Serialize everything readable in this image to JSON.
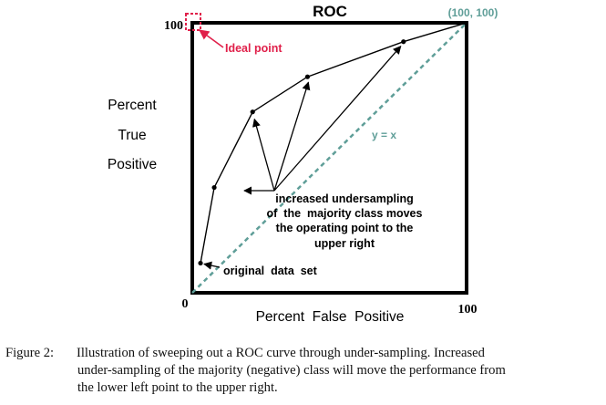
{
  "chart_data": {
    "type": "line",
    "title": "ROC",
    "xlabel": "Percent  False  Positive",
    "ylabel_lines": [
      "Percent",
      "True",
      "Positive"
    ],
    "xlim": [
      0,
      100
    ],
    "ylim": [
      0,
      100
    ],
    "x_tick_labels": {
      "origin": "0",
      "x_max": "100",
      "y_max": "100"
    },
    "series": [
      {
        "x": [
          3,
          8,
          22,
          42,
          77,
          100
        ],
        "y": [
          11,
          39,
          67,
          80,
          93,
          100
        ]
      }
    ],
    "diagonal": {
      "label": "y = x",
      "end_label": "(100, 100)",
      "color": "#5f9e98"
    },
    "ideal_point": {
      "x": 0,
      "y": 100,
      "label": "Ideal point",
      "color": "#e0204a"
    },
    "annotations": {
      "original": "original  data  set",
      "undersampling_lines": [
        "increased undersampling",
        "of  the  majority class moves",
        "the operating point to the",
        "upper right"
      ]
    }
  },
  "caption": {
    "lead": "Figure 2:",
    "line1": "Illustration of sweeping out a ROC curve through under-sampling.  Increased",
    "line2": "under-sampling of the majority (negative) class will move the performance from",
    "line3": "the lower left point to the upper right."
  }
}
